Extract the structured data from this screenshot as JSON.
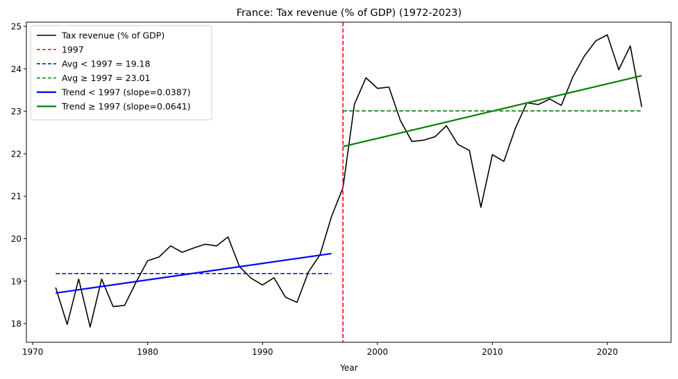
{
  "chart_data": {
    "type": "line",
    "title": "France: Tax revenue (% of GDP) (1972-2023)",
    "xlabel": "Year",
    "ylabel": "",
    "xlim": [
      1969.45,
      2025.55
    ],
    "ylim": [
      17.56,
      25.1
    ],
    "x_ticks": [
      1970,
      1980,
      1990,
      2000,
      2010,
      2020
    ],
    "y_ticks": [
      18,
      19,
      20,
      21,
      22,
      23,
      24,
      25
    ],
    "split_year": 1997,
    "series": [
      {
        "name": "Tax revenue (% of GDP)",
        "color": "#000000",
        "style": "solid",
        "x": [
          1972,
          1973,
          1974,
          1975,
          1976,
          1977,
          1978,
          1979,
          1980,
          1981,
          1982,
          1983,
          1984,
          1985,
          1986,
          1987,
          1988,
          1989,
          1990,
          1991,
          1992,
          1993,
          1994,
          1995,
          1996,
          1997,
          1998,
          1999,
          2000,
          2001,
          2002,
          2003,
          2004,
          2005,
          2006,
          2007,
          2008,
          2009,
          2010,
          2011,
          2012,
          2013,
          2014,
          2015,
          2016,
          2017,
          2018,
          2019,
          2020,
          2021,
          2022,
          2023
        ],
        "values": [
          18.85,
          17.98,
          19.05,
          17.92,
          19.05,
          18.4,
          18.43,
          18.98,
          19.48,
          19.57,
          19.83,
          19.68,
          19.78,
          19.87,
          19.83,
          20.04,
          19.34,
          19.07,
          18.91,
          19.08,
          18.62,
          18.5,
          19.22,
          19.62,
          20.52,
          21.2,
          23.17,
          23.79,
          23.54,
          23.57,
          22.78,
          22.29,
          22.32,
          22.4,
          22.66,
          22.22,
          22.08,
          20.74,
          21.98,
          21.82,
          22.6,
          23.2,
          23.16,
          23.29,
          23.14,
          23.81,
          24.3,
          24.66,
          24.8,
          23.98,
          24.54,
          23.1
        ]
      },
      {
        "name": "1997",
        "color": "#ff0000",
        "style": "dashed",
        "orientation": "vertical",
        "x_value": 1997
      },
      {
        "name": "Avg < 1997 = 19.18",
        "color": "#0000cc",
        "style": "dashed",
        "x": [
          1972,
          1996
        ],
        "values": [
          19.18,
          19.18
        ]
      },
      {
        "name": "Avg ≥ 1997 = 23.01",
        "color": "#008000",
        "style": "dashed",
        "x": [
          1997,
          2023
        ],
        "values": [
          23.01,
          23.01
        ]
      },
      {
        "name": "Trend < 1997 (slope=0.0387)",
        "color": "#0000ff",
        "style": "solid-thick",
        "x": [
          1972,
          1996
        ],
        "values": [
          18.72,
          19.65
        ]
      },
      {
        "name": "Trend ≥ 1997 (slope=0.0641)",
        "color": "#008000",
        "style": "solid-thick",
        "x": [
          1997,
          2023
        ],
        "values": [
          22.17,
          23.84
        ]
      }
    ],
    "legend_position": "top-left",
    "grid": false
  }
}
